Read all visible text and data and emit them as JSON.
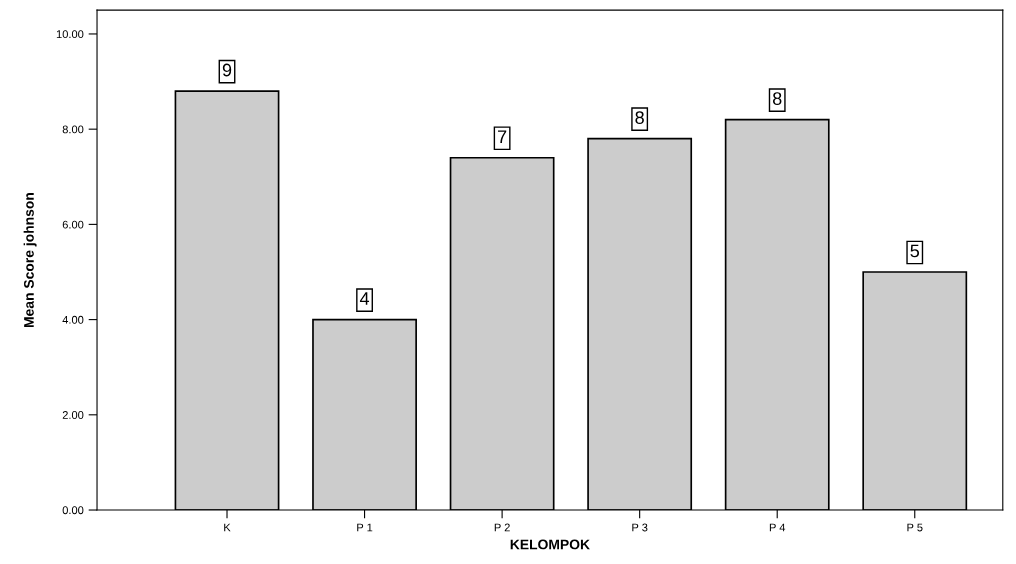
{
  "chart_data": {
    "type": "bar",
    "xlabel": "KELOMPOK",
    "ylabel": "Mean Score johnson",
    "categories": [
      "K",
      "P 1",
      "P 2",
      "P 3",
      "P 4",
      "P 5"
    ],
    "values": [
      8.8,
      4.0,
      7.4,
      7.8,
      8.2,
      5.0
    ],
    "value_labels": [
      "9",
      "4",
      "7",
      "8",
      "8",
      "5"
    ],
    "color": "#cccccc",
    "ylim": [
      0,
      10.5
    ],
    "yticks": [
      {
        "value": 0,
        "label": "0.00"
      },
      {
        "value": 2,
        "label": "2.00"
      },
      {
        "value": 4,
        "label": "4.00"
      },
      {
        "value": 6,
        "label": "6.00"
      },
      {
        "value": 8,
        "label": "8.00"
      },
      {
        "value": 10,
        "label": "10.00"
      }
    ],
    "grid": false,
    "legend": false
  }
}
